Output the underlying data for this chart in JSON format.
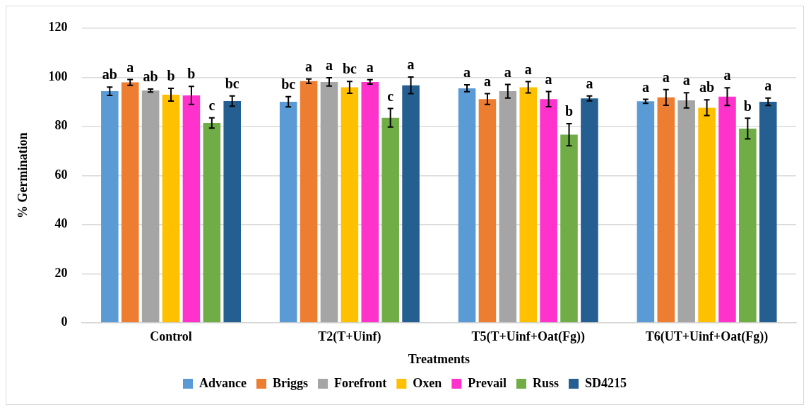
{
  "chart_data": {
    "type": "bar",
    "xlabel": "Treatments",
    "ylabel": "% Germination",
    "categories": [
      "Control",
      "T2(T+Uinf)",
      "T5(T+Uinf+Oat(Fg))",
      "T6(UT+Uinf+Oat(Fg))"
    ],
    "ylim": [
      0,
      120
    ],
    "yticks": [
      0,
      20,
      40,
      60,
      80,
      100,
      120
    ],
    "grid": "y",
    "legend": "bottom",
    "series": [
      {
        "name": "Advance",
        "color": "#5b9bd5",
        "values": [
          94.3,
          90.0,
          95.5,
          90.2
        ],
        "errors": [
          1.7,
          2.1,
          1.4,
          0.8
        ],
        "value_labels": [
          "ab",
          "bc",
          "a",
          "a"
        ]
      },
      {
        "name": "Briggs",
        "color": "#ed7d31",
        "values": [
          97.9,
          98.4,
          91.1,
          91.8
        ],
        "errors": [
          1.2,
          0.9,
          2.2,
          3.2
        ],
        "value_labels": [
          "a",
          "a",
          "a",
          "a"
        ]
      },
      {
        "name": "Forefront",
        "color": "#a5a5a5",
        "values": [
          94.6,
          98.1,
          94.3,
          90.6
        ],
        "errors": [
          0.6,
          1.7,
          2.8,
          3.1
        ],
        "value_labels": [
          "ab",
          "a",
          "a",
          "a"
        ]
      },
      {
        "name": "Oxen",
        "color": "#ffc000",
        "values": [
          92.9,
          95.9,
          95.9,
          87.6
        ],
        "errors": [
          2.6,
          2.4,
          2.3,
          3.2
        ],
        "value_labels": [
          "b",
          "bc",
          "a",
          "ab"
        ]
      },
      {
        "name": "Prevail",
        "color": "#ff33cc",
        "values": [
          92.6,
          98.1,
          91.1,
          92.1
        ],
        "errors": [
          3.7,
          0.9,
          3.1,
          3.6
        ],
        "value_labels": [
          "b",
          "a",
          "a",
          "a"
        ]
      },
      {
        "name": "Russ",
        "color": "#70ad47",
        "values": [
          81.4,
          83.5,
          76.6,
          79.1
        ],
        "errors": [
          2.1,
          3.8,
          4.5,
          4.2
        ],
        "value_labels": [
          "c",
          "c",
          "b",
          "b"
        ]
      },
      {
        "name": "SD4215",
        "color": "#255e91",
        "values": [
          90.3,
          96.7,
          91.4,
          90.0
        ],
        "errors": [
          2.1,
          3.4,
          1.0,
          1.5
        ],
        "value_labels": [
          "bc",
          "a",
          "a",
          "a"
        ]
      }
    ]
  }
}
